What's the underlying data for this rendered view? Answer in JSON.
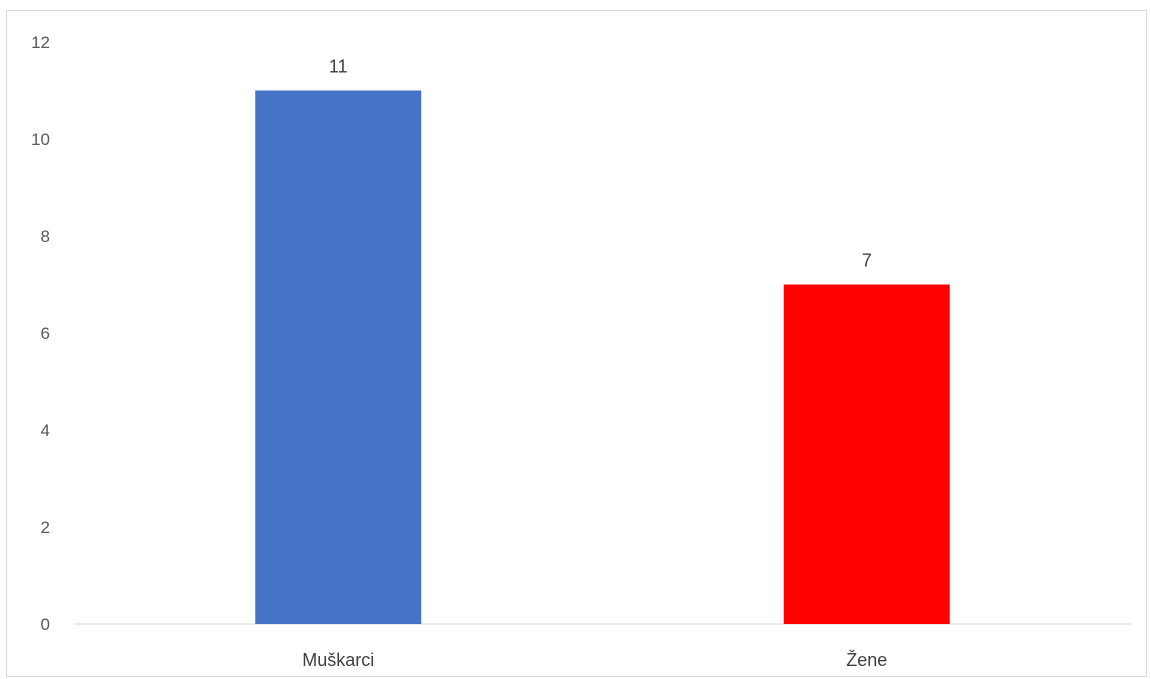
{
  "chart_data": {
    "type": "bar",
    "categories": [
      "Muškarci",
      "Žene"
    ],
    "values": [
      11,
      7
    ],
    "colors": [
      "#4472c4",
      "#ff0000"
    ],
    "data_labels": [
      "11",
      "7"
    ],
    "title": "",
    "xlabel": "",
    "ylabel": "",
    "ylim": [
      0,
      12
    ],
    "y_ticks": [
      0,
      2,
      4,
      6,
      8,
      10,
      12
    ],
    "y_tick_labels": [
      "0",
      "2",
      "4",
      "6",
      "8",
      "10",
      "12"
    ],
    "grid": false,
    "legend": "none"
  }
}
